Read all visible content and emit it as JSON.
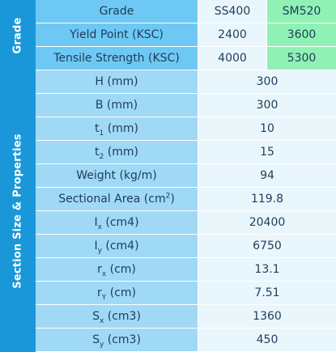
{
  "grade_section": {
    "side_label": "Grade",
    "header": {
      "label": "Grade",
      "ss": "SS400",
      "sm": "SM520"
    },
    "rows": [
      {
        "label": "Yield Point (KSC)",
        "ss": "2400",
        "sm": "3600"
      },
      {
        "label": "Tensile Strength (KSC)",
        "ss": "4000",
        "sm": "5300"
      }
    ]
  },
  "properties_section": {
    "side_label": "Section Size & Properties",
    "rows": [
      {
        "label": "H (mm)",
        "value": "300"
      },
      {
        "label": "B (mm)",
        "value": "300"
      },
      {
        "label_main": "t",
        "label_sub": "1",
        "label_unit": " (mm)",
        "value": "10"
      },
      {
        "label_main": "t",
        "label_sub": "2",
        "label_unit": " (mm)",
        "value": "15"
      },
      {
        "label": "Weight (kg/m)",
        "value": "94"
      },
      {
        "label_main": "Sectional Area (cm",
        "label_sup": "2",
        "label_unit": ")",
        "value": "119.8"
      },
      {
        "label_main": "I",
        "label_sub": "x",
        "label_unit": " (cm4)",
        "value": "20400"
      },
      {
        "label_main": "I",
        "label_sub": "y",
        "label_unit": " (cm4)",
        "value": "6750"
      },
      {
        "label_main": "r",
        "label_sub": "x",
        "label_unit": " (cm)",
        "value": "13.1"
      },
      {
        "label_main": "r",
        "label_sub": "Y",
        "label_unit": " (cm)",
        "value": "7.51"
      },
      {
        "label_main": "S",
        "label_sub": "x",
        "label_unit": " (cm3)",
        "value": "1360"
      },
      {
        "label_main": "S",
        "label_sub": "y",
        "label_unit": " (cm3)",
        "value": "450"
      }
    ]
  }
}
